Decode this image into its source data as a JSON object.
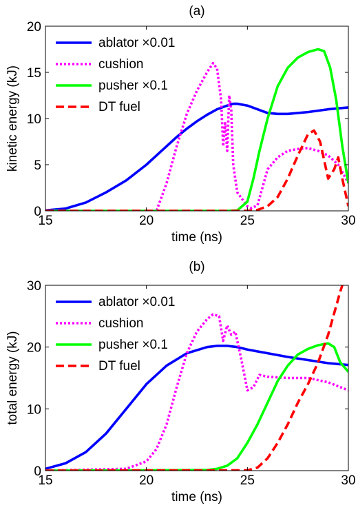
{
  "chart_data": [
    {
      "type": "line",
      "panel_label": "(a)",
      "xlabel": "time (ns)",
      "ylabel": "kinetic energy (kJ)",
      "xlim": [
        15,
        30
      ],
      "ylim": [
        0,
        20
      ],
      "xticks": [
        15,
        20,
        25,
        30
      ],
      "yticks": [
        0,
        5,
        10,
        15,
        20
      ],
      "grid": false,
      "legend_position": "top-left",
      "series": [
        {
          "name": "ablator ×0.01",
          "color": "#0000ff",
          "style": "solid",
          "x": [
            15,
            16,
            17,
            18,
            19,
            20,
            21,
            21.5,
            22,
            22.5,
            23,
            23.5,
            24,
            24.3,
            24.5,
            25,
            25.5,
            26,
            26.5,
            27,
            28,
            29,
            30
          ],
          "y": [
            0.05,
            0.25,
            0.9,
            2.0,
            3.3,
            5.0,
            7.0,
            8.0,
            8.9,
            9.7,
            10.4,
            11.0,
            11.4,
            11.6,
            11.6,
            11.4,
            11.0,
            10.6,
            10.5,
            10.5,
            10.7,
            11.0,
            11.2
          ]
        },
        {
          "name": "cushion",
          "color": "#ff00ff",
          "style": "dotted",
          "x": [
            15,
            20.5,
            21,
            21.5,
            22,
            22.5,
            23,
            23.3,
            23.5,
            23.7,
            23.8,
            23.9,
            24.0,
            24.1,
            24.2,
            24.3,
            24.5,
            25,
            25.2,
            25.5,
            26,
            26.5,
            27,
            27.5,
            28,
            28.5,
            29,
            29.5,
            30
          ],
          "y": [
            0,
            0,
            3.0,
            7.0,
            10.5,
            13.0,
            15.0,
            16.0,
            15.4,
            12.0,
            7.0,
            9.5,
            6.5,
            12.5,
            11.0,
            5.0,
            2.0,
            0.5,
            0.3,
            0.6,
            4.5,
            5.8,
            6.5,
            6.7,
            6.8,
            6.5,
            6.0,
            5.0,
            3.0
          ]
        },
        {
          "name": "pusher ×0.1",
          "color": "#00ff00",
          "style": "solid",
          "x": [
            15,
            24,
            24.5,
            25,
            25.3,
            25.6,
            26,
            26.5,
            27,
            27.5,
            28,
            28.5,
            28.8,
            29.1,
            29.4,
            29.7,
            30
          ],
          "y": [
            0,
            0,
            0.05,
            1.0,
            3.5,
            6.5,
            10.0,
            13.5,
            15.5,
            16.6,
            17.2,
            17.5,
            17.3,
            15.5,
            12.0,
            7.0,
            3.0
          ]
        },
        {
          "name": "DT fuel",
          "color": "#ff0000",
          "style": "dashed",
          "x": [
            15,
            25,
            25.5,
            26,
            26.5,
            27,
            27.5,
            28,
            28.3,
            28.6,
            29,
            29.3,
            29.5,
            29.7,
            30
          ],
          "y": [
            0,
            0,
            0.1,
            0.5,
            1.5,
            3.5,
            6.0,
            8.3,
            8.7,
            7.5,
            3.5,
            4.5,
            5.8,
            3.5,
            0.5
          ]
        }
      ]
    },
    {
      "type": "line",
      "panel_label": "(b)",
      "xlabel": "time (ns)",
      "ylabel": "total energy (kJ)",
      "xlim": [
        15,
        30
      ],
      "ylim": [
        0,
        30
      ],
      "xticks": [
        15,
        20,
        25,
        30
      ],
      "yticks": [
        0,
        10,
        20,
        30
      ],
      "grid": false,
      "legend_position": "top-left",
      "series": [
        {
          "name": "ablator ×0.01",
          "color": "#0000ff",
          "style": "solid",
          "x": [
            15,
            16,
            17,
            18,
            19,
            20,
            21,
            22,
            23,
            23.5,
            24,
            24.5,
            25,
            26,
            27,
            28,
            29,
            30
          ],
          "y": [
            0.3,
            1.2,
            3.0,
            6.0,
            10.0,
            14.0,
            17.0,
            19.0,
            20.0,
            20.2,
            20.2,
            20.0,
            19.6,
            19.0,
            18.4,
            17.9,
            17.4,
            17.1
          ]
        },
        {
          "name": "cushion",
          "color": "#ff00ff",
          "style": "dotted",
          "x": [
            15,
            19,
            20,
            20.5,
            21,
            21.5,
            22,
            22.5,
            23,
            23.3,
            23.6,
            23.8,
            24.0,
            24.2,
            24.4,
            24.7,
            25,
            25.3,
            25.6,
            26,
            27,
            28,
            29,
            30
          ],
          "y": [
            0,
            0.3,
            1.5,
            3.5,
            7.5,
            13.5,
            19.0,
            22.5,
            24.5,
            25.3,
            25.0,
            21.0,
            23.5,
            22.0,
            22.5,
            18.0,
            13.0,
            13.5,
            15.5,
            15.2,
            15.0,
            15.0,
            14.3,
            13.0
          ]
        },
        {
          "name": "pusher ×0.1",
          "color": "#00ff00",
          "style": "solid",
          "x": [
            15,
            23,
            23.5,
            24,
            24.5,
            25,
            25.5,
            26,
            26.5,
            27,
            27.5,
            28,
            28.5,
            29,
            29.3,
            29.6,
            30
          ],
          "y": [
            0,
            0.1,
            0.3,
            0.8,
            2.0,
            4.5,
            7.5,
            11.0,
            14.5,
            17.0,
            18.8,
            19.7,
            20.3,
            20.6,
            20.0,
            17.5,
            16.0
          ]
        },
        {
          "name": "DT fuel",
          "color": "#ff0000",
          "style": "dashed",
          "x": [
            15,
            25,
            25.5,
            26,
            26.5,
            27,
            27.5,
            28,
            28.5,
            29,
            29.3,
            29.6,
            29.7
          ],
          "y": [
            0,
            0.05,
            0.5,
            2.0,
            4.5,
            7.5,
            11.0,
            14.0,
            17.5,
            22.0,
            25.5,
            29.0,
            30.0
          ]
        }
      ]
    }
  ]
}
